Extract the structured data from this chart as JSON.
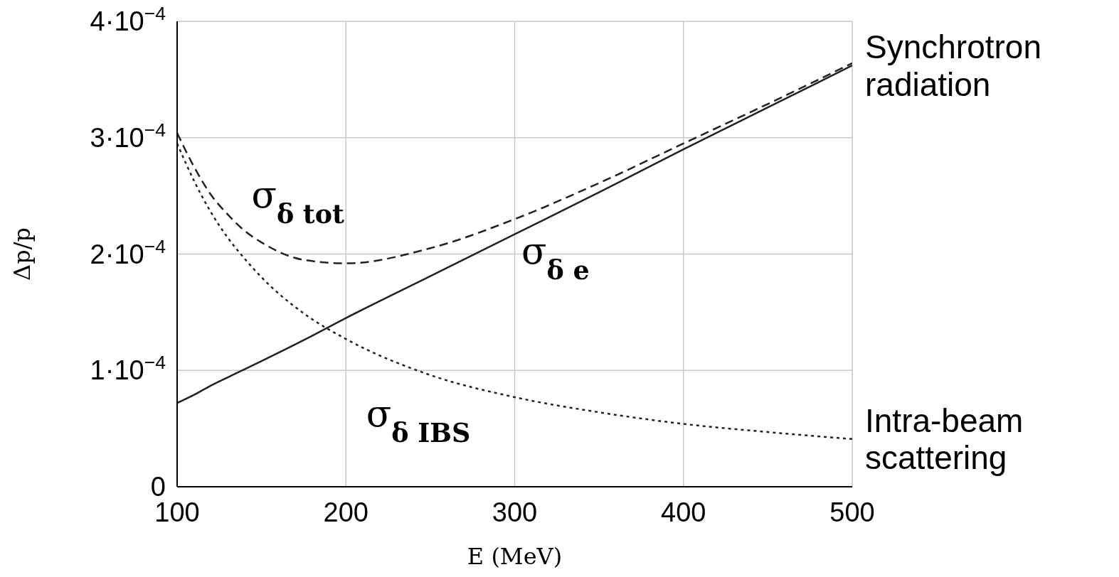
{
  "chart_data": {
    "type": "line",
    "xlabel": "E (MeV)",
    "ylabel": "Δp/p",
    "x": [
      100,
      110,
      120,
      130,
      140,
      150,
      175,
      200,
      250,
      300,
      350,
      400,
      450,
      500
    ],
    "series": [
      {
        "color": "#222222",
        "line_style": "dashed",
        "values": [
          0.000304,
          0.000275,
          0.000251,
          0.000234,
          0.00022,
          0.00021,
          0.000195,
          0.000192,
          0.000205,
          0.00023,
          0.000261,
          0.000295,
          0.000329,
          0.000364
        ]
      },
      {
        "color": "#222222",
        "line_style": "solid",
        "values": [
          7.2e-05,
          7.9e-05,
          8.7e-05,
          9.4e-05,
          0.000101,
          0.000108,
          0.000126,
          0.000145,
          0.000181,
          0.000217,
          0.000253,
          0.00029,
          0.000326,
          0.000362
        ]
      },
      {
        "color": "#222222",
        "line_style": "dotted",
        "values": [
          0.000295,
          0.000263,
          0.000236,
          0.000214,
          0.000196,
          0.00018,
          0.000149,
          0.000127,
          9.6e-05,
          7.7e-05,
          6.4e-05,
          5.4e-05,
          4.7e-05,
          4.1e-05
        ]
      }
    ],
    "xlim": [
      100,
      500
    ],
    "xticks": [
      100,
      200,
      300,
      400,
      500
    ],
    "ylim": [
      0,
      0.0004
    ],
    "yticks": [
      {
        "value": 0,
        "label": "0"
      },
      {
        "value": 0.0001,
        "label": "1·10$^{−4}$"
      },
      {
        "value": 0.0002,
        "label": "2·10$^{−4}$"
      },
      {
        "value": 0.0003,
        "label": "3·10$^{−4}$"
      },
      {
        "value": 0.0004,
        "label": "4·10$^{−4}$"
      }
    ],
    "grid": true,
    "marker": "none",
    "annotations": [
      "σ$_{δ tot}$",
      "σ$_{δ e}$",
      "σ$_{δ IBS}$",
      {
        "text": "Synchrotron radiation",
        "x": 500,
        "y": 0.000362
      },
      {
        "text": "Intra-beam scattering",
        "x": 500,
        "y": 4.1e-05
      }
    ]
  }
}
